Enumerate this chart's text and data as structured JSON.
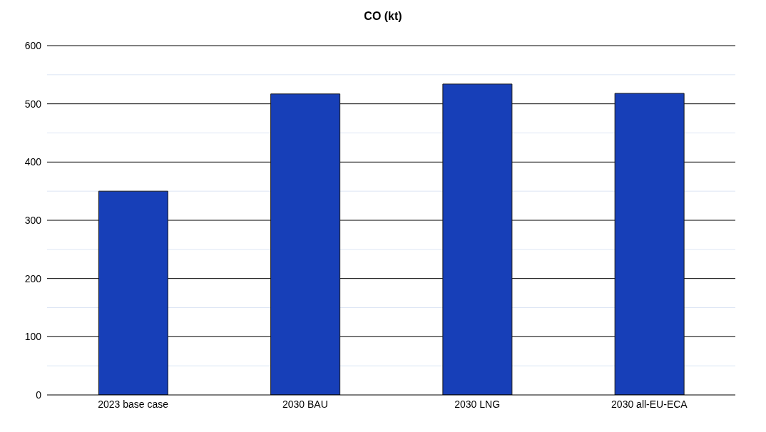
{
  "chart_data": {
    "type": "bar",
    "title": "CO (kt)",
    "categories": [
      "2023 base case",
      "2030 BAU",
      "2030 LNG",
      "2030 all-EU-ECA"
    ],
    "values": [
      350,
      517,
      534,
      518
    ],
    "color": "#173fb8",
    "ylim": [
      0,
      600
    ],
    "yticks": [
      0,
      {
        "value": 50,
        "label": null
      },
      100,
      {
        "value": 150,
        "label": null
      },
      200,
      {
        "value": 250,
        "label": null
      },
      300,
      {
        "value": 350,
        "label": null
      },
      400,
      {
        "value": 450,
        "label": null
      },
      500,
      {
        "value": 550,
        "label": null
      },
      600
    ],
    "grid": true
  }
}
